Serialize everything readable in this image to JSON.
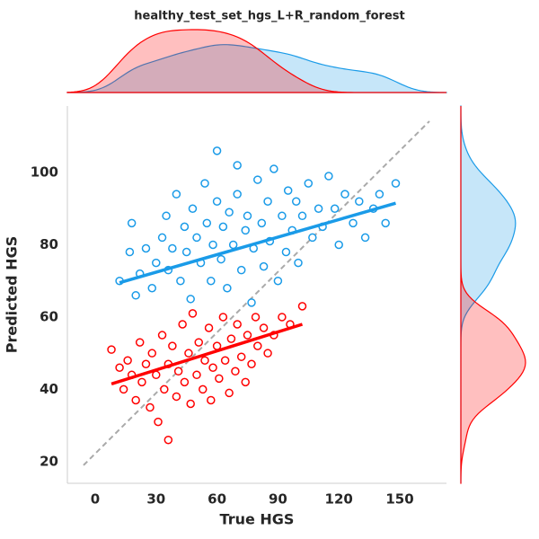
{
  "chart_data": {
    "type": "scatter",
    "title": "healthy_test_set_hgs_L+R_random_forest",
    "xlabel": "True HGS",
    "ylabel": "Predicted HGS",
    "xlim": [
      -13.7,
      173
    ],
    "ylim": [
      14,
      118.4
    ],
    "xticks": [
      0,
      30,
      60,
      90,
      120,
      150
    ],
    "yticks": [
      20,
      40,
      60,
      80,
      100
    ],
    "series": [
      {
        "color": "#1a9be8",
        "x": [
          12,
          18,
          17,
          20,
          22,
          25,
          28,
          30,
          33,
          35,
          36,
          38,
          40,
          42,
          44,
          45,
          47,
          48,
          50,
          52,
          54,
          55,
          57,
          58,
          60,
          60,
          62,
          63,
          65,
          66,
          68,
          70,
          70,
          72,
          74,
          75,
          77,
          78,
          80,
          82,
          83,
          85,
          86,
          88,
          90,
          92,
          94,
          95,
          97,
          99,
          100,
          102,
          105,
          107,
          110,
          112,
          115,
          118,
          120,
          123,
          127,
          130,
          133,
          137,
          140,
          143,
          148
        ],
        "values": [
          70,
          86,
          78,
          66,
          72,
          79,
          68,
          75,
          82,
          88,
          73,
          79,
          94,
          70,
          85,
          78,
          65,
          90,
          82,
          75,
          97,
          86,
          70,
          80,
          106,
          92,
          76,
          85,
          68,
          89,
          80,
          102,
          94,
          73,
          84,
          88,
          64,
          79,
          98,
          86,
          74,
          92,
          81,
          101,
          70,
          88,
          78,
          95,
          84,
          92,
          75,
          88,
          97,
          82,
          90,
          85,
          99,
          90,
          80,
          94,
          86,
          92,
          82,
          90,
          94,
          86,
          97
        ]
      },
      {
        "color": "#ff0000",
        "x": [
          8,
          12,
          14,
          16,
          18,
          20,
          22,
          23,
          25,
          27,
          28,
          30,
          31,
          33,
          34,
          36,
          36,
          38,
          40,
          41,
          43,
          44,
          46,
          47,
          48,
          50,
          51,
          53,
          54,
          56,
          57,
          58,
          60,
          61,
          63,
          64,
          66,
          67,
          69,
          70,
          72,
          74,
          75,
          77,
          79,
          80,
          83,
          85,
          88,
          92,
          96,
          102
        ],
        "values": [
          51,
          46,
          40,
          48,
          44,
          37,
          53,
          42,
          47,
          35,
          50,
          44,
          31,
          55,
          40,
          47,
          26,
          52,
          38,
          45,
          58,
          42,
          50,
          36,
          61,
          44,
          53,
          40,
          48,
          57,
          37,
          46,
          52,
          43,
          60,
          48,
          39,
          54,
          45,
          58,
          49,
          42,
          55,
          47,
          60,
          52,
          57,
          50,
          55,
          60,
          58,
          63
        ]
      }
    ],
    "fits": [
      {
        "color": "#1a9be8",
        "x": [
          12,
          148
        ],
        "values": [
          69.5,
          91.5
        ]
      },
      {
        "color": "#ff0000",
        "x": [
          8,
          102
        ],
        "values": [
          41.5,
          58
        ]
      }
    ],
    "reference_line": {
      "color": "#aaaaaa",
      "x": [
        -5.75,
        164.6
      ],
      "values": [
        19,
        114.2
      ]
    }
  }
}
